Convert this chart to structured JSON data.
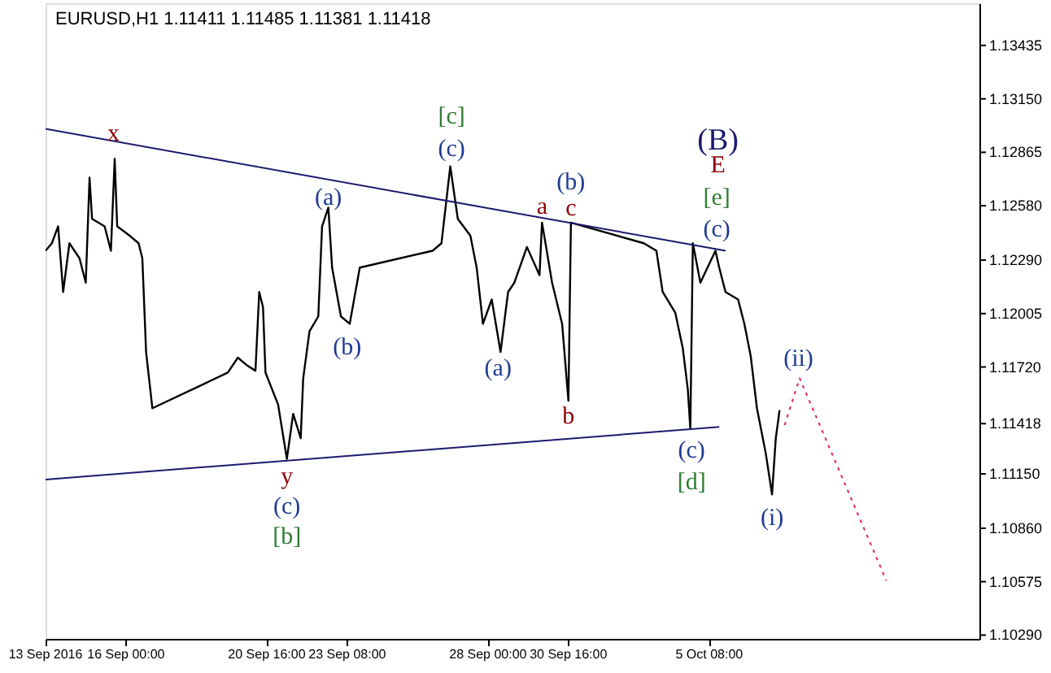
{
  "chart_data": {
    "type": "line",
    "title": "EURUSD,H1  1.11411 1.11485 1.11381 1.11418",
    "xlim": [
      "2016-09-13T08:00",
      "2016-10-14T07:00"
    ],
    "xticks": [
      {
        "value": "2016-09-13T08:00",
        "label": "13 Sep 2016"
      },
      {
        "value": "2016-09-16T00:00",
        "label": "16 Sep 00:00"
      },
      {
        "value": "2016-09-20T16:00",
        "label": "20 Sep 16:00"
      },
      {
        "value": "2016-09-23T08:00",
        "label": "23 Sep 08:00"
      },
      {
        "value": "2016-09-28T00:00",
        "label": "28 Sep 00:00"
      },
      {
        "value": "2016-09-30T16:00",
        "label": "30 Sep 16:00"
      },
      {
        "value": "2016-10-05T08:00",
        "label": "5 Oct 08:00"
      }
    ],
    "ylim": [
      1.1027,
      1.1366
    ],
    "yticks": [
      {
        "value": 1.13435,
        "label": "1.13435"
      },
      {
        "value": 1.1315,
        "label": "1.13150"
      },
      {
        "value": 1.12865,
        "label": "1.12865"
      },
      {
        "value": 1.1258,
        "label": "1.12580"
      },
      {
        "value": 1.1229,
        "label": "1.12290"
      },
      {
        "value": 1.12005,
        "label": "1.12005"
      },
      {
        "value": 1.1172,
        "label": "1.11720"
      },
      {
        "value": 1.11418,
        "label": "1.11418"
      },
      {
        "value": 1.1115,
        "label": "1.11150"
      },
      {
        "value": 1.1086,
        "label": "1.10860"
      },
      {
        "value": 1.10575,
        "label": "1.10575"
      },
      {
        "value": 1.1029,
        "label": "1.10290"
      }
    ],
    "grid": false,
    "marker": "none",
    "series": [
      {
        "color": "#000000",
        "line_style": "solid",
        "x": [
          "2016-09-13T08:00",
          "2016-09-13T13:00",
          "2016-09-13T18:00",
          "2016-09-13T22:00",
          "2016-09-14T03:00",
          "2016-09-14T11:00",
          "2016-09-14T16:00",
          "2016-09-14T19:00",
          "2016-09-14T21:00",
          "2016-09-15T07:00",
          "2016-09-15T12:00",
          "2016-09-15T15:00",
          "2016-09-15T17:00",
          "2016-09-16T03:00",
          "2016-09-16T10:00",
          "2016-09-16T13:00",
          "2016-09-16T16:00",
          "2016-09-16T21:00",
          "2016-09-19T09:00",
          "2016-09-19T17:00",
          "2016-09-20T00:00",
          "2016-09-20T07:00",
          "2016-09-20T10:00",
          "2016-09-20T13:00",
          "2016-09-20T15:00",
          "2016-09-21T01:00",
          "2016-09-21T08:00",
          "2016-09-21T13:00",
          "2016-09-21T19:00",
          "2016-09-21T21:00",
          "2016-09-22T02:00",
          "2016-09-22T09:00",
          "2016-09-22T12:00",
          "2016-09-22T17:00",
          "2016-09-22T20:00",
          "2016-09-23T03:00",
          "2016-09-23T10:00",
          "2016-09-23T18:00",
          "2016-09-26T04:00",
          "2016-09-26T11:00",
          "2016-09-26T18:00",
          "2016-09-27T00:00",
          "2016-09-27T10:00",
          "2016-09-27T15:00",
          "2016-09-27T20:00",
          "2016-09-28T03:00",
          "2016-09-28T10:00",
          "2016-09-28T16:00",
          "2016-09-28T21:00",
          "2016-09-29T07:00",
          "2016-09-29T17:00",
          "2016-09-29T19:00",
          "2016-09-30T03:00",
          "2016-09-30T11:00",
          "2016-09-30T16:00",
          "2016-09-30T18:00",
          "2016-10-03T04:00",
          "2016-10-03T14:00",
          "2016-10-03T19:00",
          "2016-10-04T05:00",
          "2016-10-04T11:00",
          "2016-10-04T15:00",
          "2016-10-04T17:00",
          "2016-10-04T19:00",
          "2016-10-05T01:00",
          "2016-10-05T13:00",
          "2016-10-05T16:00",
          "2016-10-05T21:00",
          "2016-10-06T07:00",
          "2016-10-06T12:00",
          "2016-10-06T17:00",
          "2016-10-06T22:00",
          "2016-10-07T05:00",
          "2016-10-07T10:00",
          "2016-10-07T13:00",
          "2016-10-07T16:00"
        ],
        "values": [
          1.1234,
          1.1238,
          1.1247,
          1.1212,
          1.1238,
          1.123,
          1.1217,
          1.1273,
          1.1251,
          1.1247,
          1.1234,
          1.1283,
          1.1247,
          1.1242,
          1.1238,
          1.123,
          1.118,
          1.115,
          1.1169,
          1.1177,
          1.1173,
          1.117,
          1.1212,
          1.1204,
          1.1169,
          1.1152,
          1.1123,
          1.1147,
          1.1134,
          1.1166,
          1.1191,
          1.1199,
          1.1247,
          1.1257,
          1.1225,
          1.1199,
          1.1195,
          1.1225,
          1.1234,
          1.1238,
          1.1279,
          1.1251,
          1.1242,
          1.1225,
          1.1195,
          1.1208,
          1.118,
          1.1212,
          1.1217,
          1.1236,
          1.1221,
          1.1249,
          1.1217,
          1.1195,
          1.1154,
          1.1249,
          1.1238,
          1.1234,
          1.1212,
          1.1201,
          1.1182,
          1.116,
          1.1139,
          1.1238,
          1.1217,
          1.1234,
          1.1225,
          1.1212,
          1.1208,
          1.1195,
          1.1178,
          1.115,
          1.1126,
          1.1104,
          1.1134,
          1.1149
        ]
      },
      {
        "color": "#1a1a6e",
        "line_style": "solid",
        "x": [
          "2016-09-13T08:00",
          "2016-10-05T21:00"
        ],
        "values": [
          1.1299,
          1.1234
        ]
      },
      {
        "color": "#1a1a6e",
        "line_style": "solid",
        "x": [
          "2016-09-13T08:00",
          "2016-10-05T16:00"
        ],
        "values": [
          1.1112,
          1.114
        ]
      },
      {
        "color": "#e0245e",
        "line_style": "dotted",
        "x": [
          "2016-10-07T20:00",
          "2016-10-08T08:00",
          "2016-10-11T05:00"
        ],
        "values": [
          1.1141,
          1.1166,
          1.1058
        ]
      }
    ],
    "annotations": [
      "x",
      "(a)",
      "[c]",
      "(c)",
      "a",
      "(b)",
      "c",
      "(B)",
      "E",
      "[e]",
      "(c)",
      "(b)",
      "(a)",
      "b",
      "y",
      "(c)",
      "[b]",
      "(c)",
      "[d]",
      "(ii)",
      "(i)"
    ]
  }
}
